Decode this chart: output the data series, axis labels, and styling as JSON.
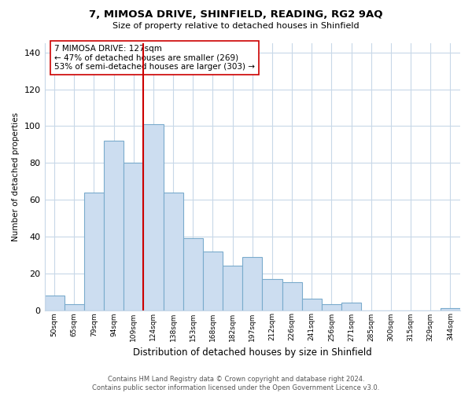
{
  "title": "7, MIMOSA DRIVE, SHINFIELD, READING, RG2 9AQ",
  "subtitle": "Size of property relative to detached houses in Shinfield",
  "xlabel": "Distribution of detached houses by size in Shinfield",
  "ylabel": "Number of detached properties",
  "categories": [
    "50sqm",
    "65sqm",
    "79sqm",
    "94sqm",
    "109sqm",
    "124sqm",
    "138sqm",
    "153sqm",
    "168sqm",
    "182sqm",
    "197sqm",
    "212sqm",
    "226sqm",
    "241sqm",
    "256sqm",
    "271sqm",
    "285sqm",
    "300sqm",
    "315sqm",
    "329sqm",
    "344sqm"
  ],
  "values": [
    8,
    3,
    64,
    92,
    80,
    101,
    64,
    39,
    32,
    24,
    29,
    17,
    15,
    6,
    3,
    4,
    0,
    0,
    0,
    0,
    1
  ],
  "bar_color": "#ccddf0",
  "bar_edge_color": "#7aabcc",
  "vline_color": "#cc0000",
  "annotation_text": "7 MIMOSA DRIVE: 127sqm\n← 47% of detached houses are smaller (269)\n53% of semi-detached houses are larger (303) →",
  "annotation_box_color": "white",
  "annotation_box_edge": "#cc0000",
  "ylim": [
    0,
    145
  ],
  "yticks": [
    0,
    20,
    40,
    60,
    80,
    100,
    120,
    140
  ],
  "footer_text": "Contains HM Land Registry data © Crown copyright and database right 2024.\nContains public sector information licensed under the Open Government Licence v3.0.",
  "bg_color": "white",
  "grid_color": "#c8d8e8"
}
